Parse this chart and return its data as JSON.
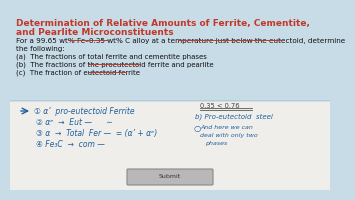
{
  "title_line1": "Determination of Relative Amounts of Ferrite, Cementite,",
  "title_line2": "and Pearlite Microconstituents",
  "title_color": "#c0392b",
  "body_line1": "For a 99.65 wt% Fe–0.35 wt% C alloy at a temperature just below the eutectoid, determine",
  "body_line2": "the following:",
  "items": [
    "(a)  The fractions of total ferrite and cementite phases",
    "(b)  The fractions of the proeutectoid ferrite and pearlite",
    "(c)  The fraction of eutectoid ferrite"
  ],
  "note_top": "0.35 < 0.76",
  "note_right1": "b) Pro-eutectoid  steel",
  "note_right2": "♣  And here we can",
  "note_right3": "deal with only two",
  "note_right4": "phases",
  "bg_top": "#c8dce8",
  "bg_bottom": "#f0eeea",
  "text_color": "#111111",
  "hw_color": "#2060a0",
  "button_text": "Submit",
  "red": "#c0392b"
}
